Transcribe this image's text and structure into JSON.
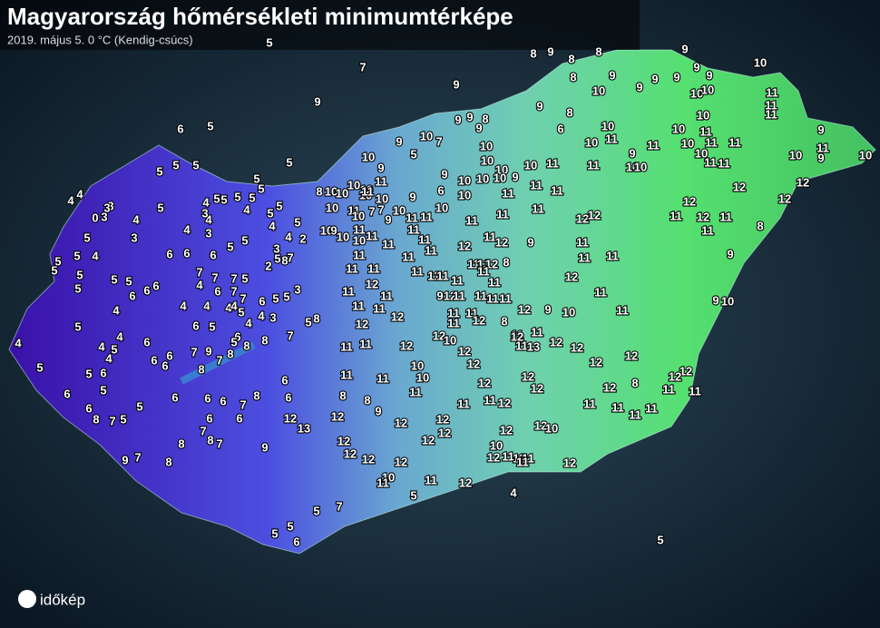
{
  "title": "Magyarország hőmérsékleti minimumtérképe",
  "subtitle": "2019. május 5.  0 °C (Kendig-csúcs)",
  "logo": "időkép",
  "stations": [
    5,
    7,
    9,
    9,
    8,
    9,
    8,
    8,
    9,
    8,
    9,
    10,
    9,
    9,
    9,
    9,
    9,
    10,
    10,
    10,
    11,
    11,
    11,
    9,
    8,
    9,
    9,
    8,
    9,
    6,
    10,
    10,
    11,
    11,
    10,
    10,
    11,
    10,
    11,
    11,
    9,
    11,
    9,
    10,
    10,
    10,
    11,
    11,
    9,
    10,
    10,
    9,
    10,
    7,
    5,
    10,
    10,
    10,
    9,
    10,
    10,
    10,
    11,
    11,
    11,
    11,
    11,
    10,
    10,
    9,
    6,
    10,
    9,
    10,
    9,
    11,
    10,
    10,
    10,
    10,
    11,
    11,
    11,
    11,
    11,
    11,
    12,
    12,
    12,
    11,
    12,
    11,
    11,
    12,
    12,
    12,
    8,
    9,
    9,
    10,
    8,
    10,
    10,
    10,
    11,
    11,
    10,
    7,
    9,
    7,
    10,
    10,
    9,
    10,
    11,
    10,
    11,
    11,
    11,
    11,
    11,
    12,
    11,
    12,
    9,
    11,
    11,
    11,
    11,
    11,
    11,
    11,
    11,
    11,
    11,
    11,
    13,
    12,
    11,
    8,
    11,
    12,
    11,
    11,
    11,
    12,
    11,
    12,
    9,
    11,
    11,
    11,
    11,
    11,
    11,
    12,
    11,
    11,
    11,
    12,
    12,
    9,
    10,
    8,
    11,
    11,
    11,
    12,
    11,
    11,
    12,
    12,
    10,
    12,
    12,
    12,
    13,
    12,
    12,
    12,
    12,
    12,
    12,
    11,
    11,
    12,
    8,
    11,
    11,
    11,
    11,
    12,
    12,
    11,
    11,
    10,
    10,
    11,
    12,
    11,
    12,
    11,
    8,
    8,
    9,
    12,
    12,
    12,
    12,
    12,
    12,
    13,
    12,
    12,
    10,
    10,
    12,
    11,
    11,
    11,
    11,
    12,
    12,
    12,
    12,
    12,
    10,
    11,
    11,
    12,
    4,
    5,
    7,
    5,
    5,
    5,
    6,
    5,
    6,
    5,
    5,
    5,
    5,
    5,
    5,
    5,
    5,
    5,
    5,
    5,
    5,
    4,
    5,
    4,
    4,
    3,
    4,
    3,
    5,
    4,
    3,
    3,
    0,
    3,
    3,
    4,
    4,
    5,
    4,
    5,
    5,
    5,
    5,
    5,
    5,
    5,
    6,
    6,
    6,
    6,
    6,
    6,
    5,
    5,
    4,
    4,
    2,
    5,
    3,
    2,
    5,
    8,
    7,
    7,
    7,
    7,
    5,
    4,
    6,
    7,
    7,
    6,
    5,
    5,
    3,
    4,
    4,
    5,
    4,
    3,
    4,
    4,
    4,
    4,
    5,
    4,
    4,
    6,
    4,
    5,
    5,
    6,
    4,
    5,
    5,
    6,
    6,
    8,
    7,
    5,
    5,
    6,
    6,
    6,
    7,
    9,
    7,
    8,
    6,
    5,
    6,
    5,
    8,
    8,
    7,
    5,
    8,
    8,
    6,
    6,
    6,
    7,
    8,
    6,
    6,
    6,
    6,
    7,
    8,
    8,
    7,
    9,
    9,
    7,
    8
  ]
}
